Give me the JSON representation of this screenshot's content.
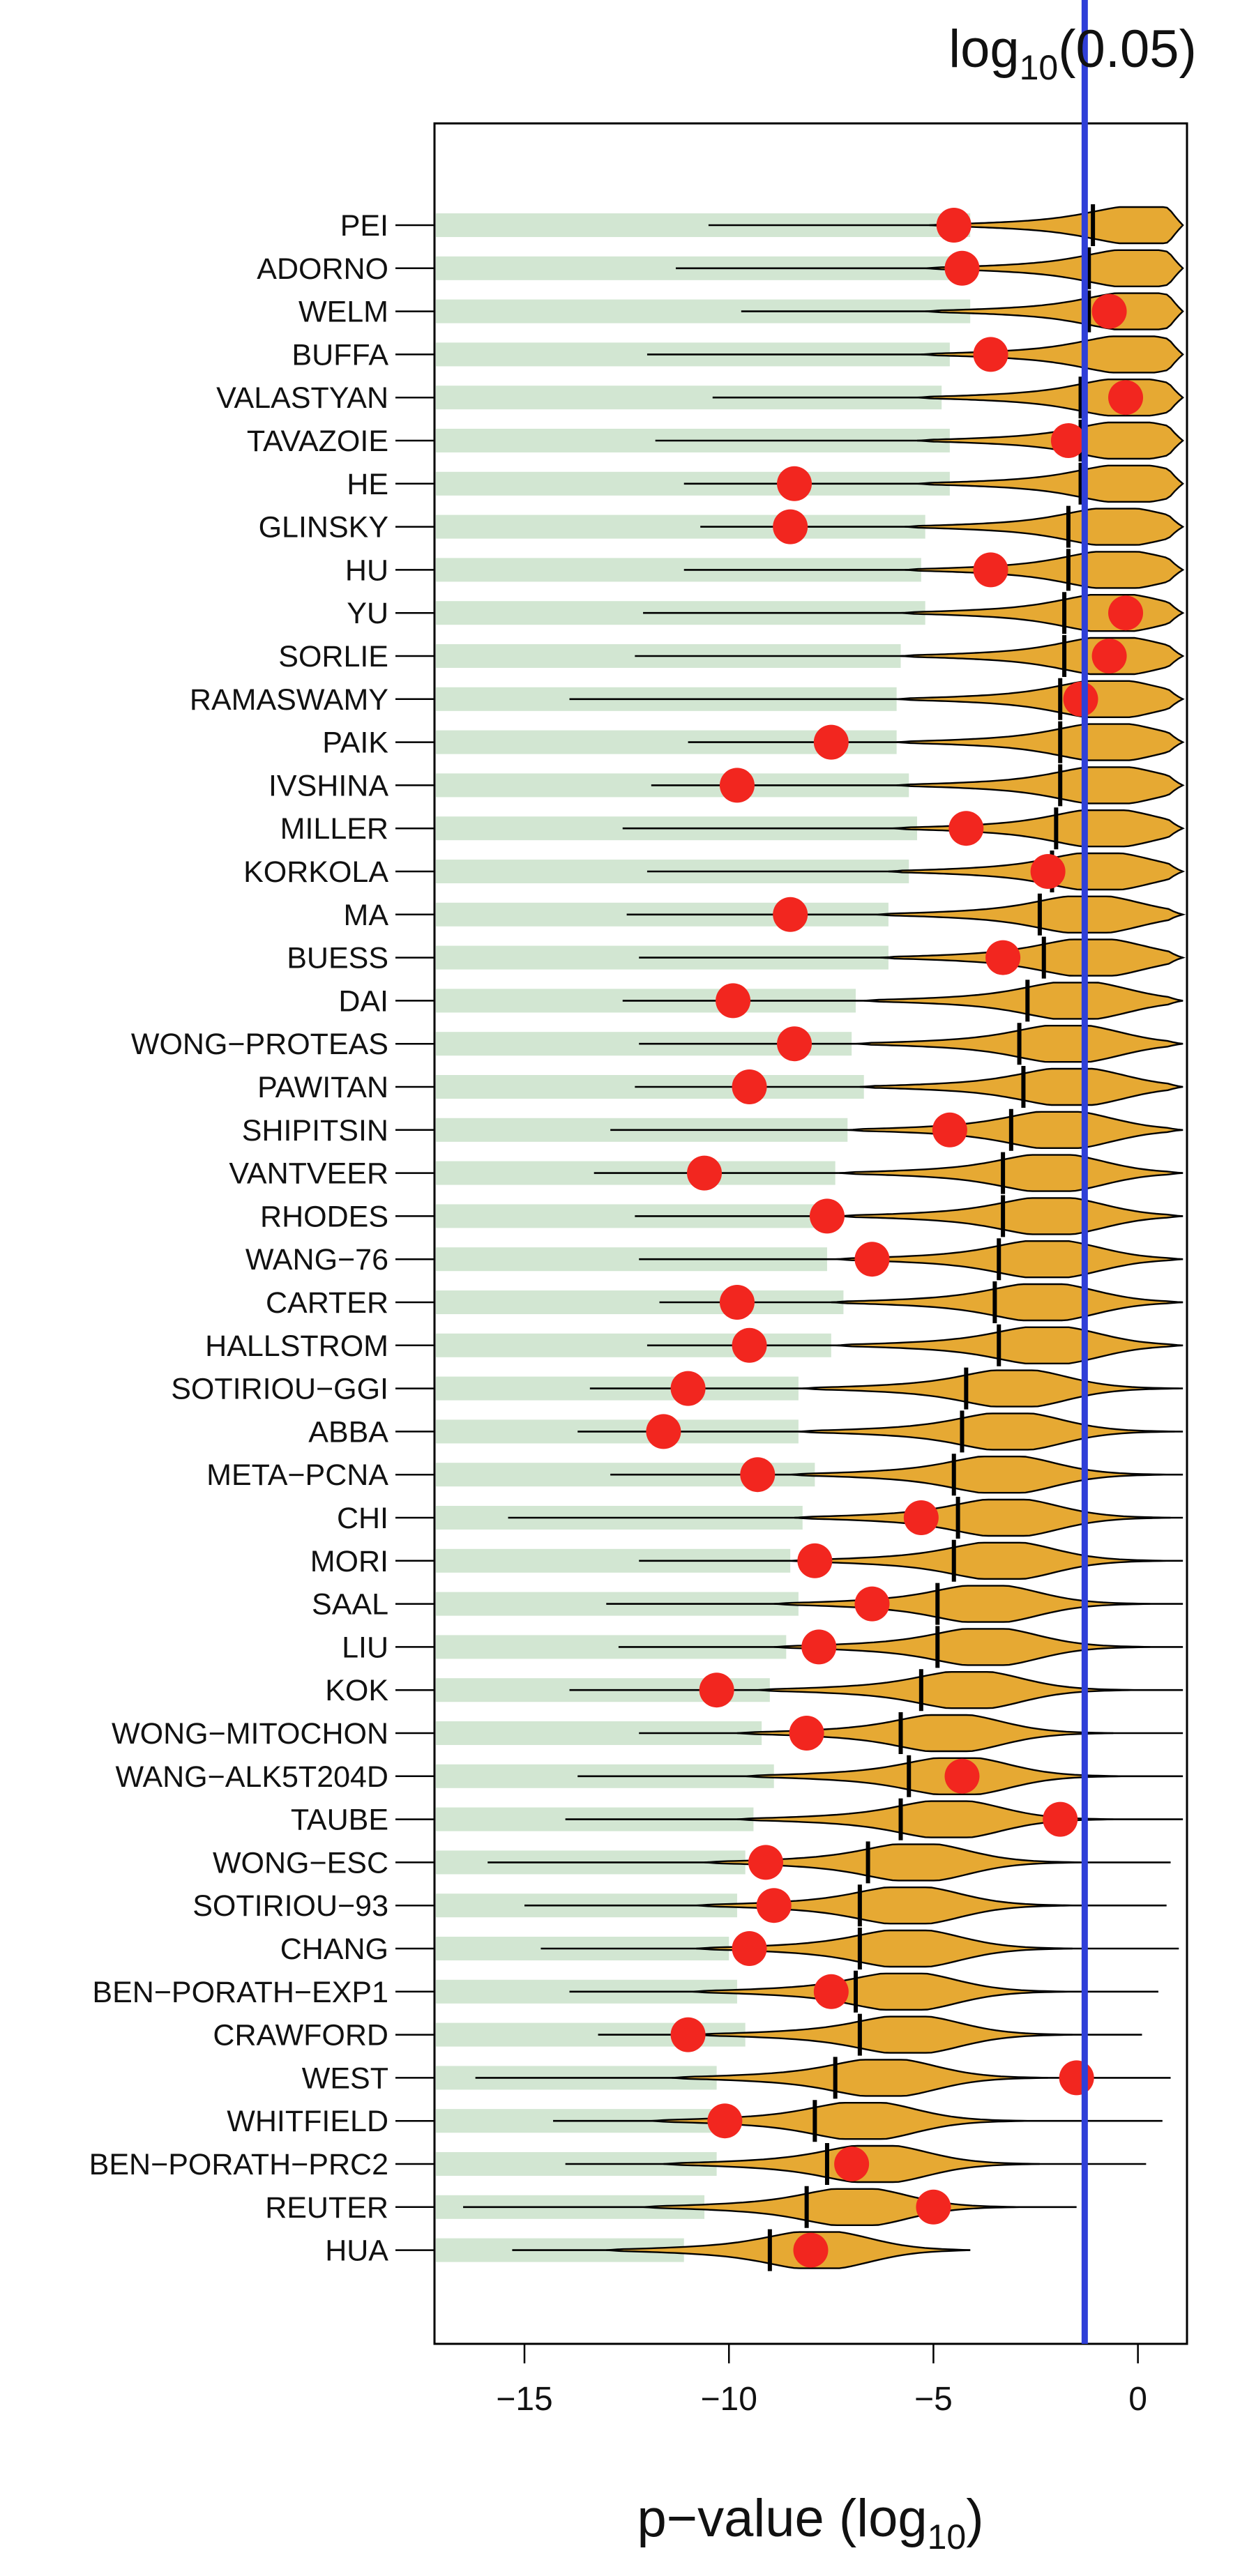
{
  "chart_data": {
    "type": "violin-dot",
    "title": "",
    "xlabel": "p−value (log",
    "xlabel_sub": "10",
    "xlabel_close": ")",
    "xlim": [
      -17.2,
      1.2
    ],
    "x_ticks": [
      -15,
      -10,
      -5,
      0
    ],
    "x_tick_labels": [
      "−15",
      "−10",
      "−5",
      "0"
    ],
    "reference_line": {
      "value": -1.301,
      "label": "log",
      "label_sub": "10",
      "label_arg": "(0.05)",
      "color": "#2f3fd8"
    },
    "colors": {
      "bar": "#d2e6d2",
      "violin": "#e6a933",
      "dot": "#f2261f",
      "whisker": "#000000",
      "frame": "#000000"
    },
    "series_names": [
      "bar_min",
      "whisker_lo",
      "whisker_hi",
      "median",
      "observed"
    ],
    "categories": [
      "PEI",
      "ADORNO",
      "WELM",
      "BUFFA",
      "VALASTYAN",
      "TAVAZOIE",
      "HE",
      "GLINSKY",
      "HU",
      "YU",
      "SORLIE",
      "RAMASWAMY",
      "PAIK",
      "IVSHINA",
      "MILLER",
      "KORKOLA",
      "MA",
      "BUESS",
      "DAI",
      "WONG−PROTEAS",
      "PAWITAN",
      "SHIPITSIN",
      "VANTVEER",
      "RHODES",
      "WANG−76",
      "CARTER",
      "HALLSTROM",
      "SOTIRIOU−GGI",
      "ABBA",
      "META−PCNA",
      "CHI",
      "MORI",
      "SAAL",
      "LIU",
      "KOK",
      "WONG−MITOCHON",
      "WANG−ALK5T204D",
      "TAUBE",
      "WONG−ESC",
      "SOTIRIOU−93",
      "CHANG",
      "BEN−PORATH−EXP1",
      "CRAWFORD",
      "WEST",
      "WHITFIELD",
      "BEN−PORATH−PRC2",
      "REUTER",
      "HUA"
    ],
    "bar_min": [
      -4.1,
      -4.2,
      -4.1,
      -4.6,
      -4.8,
      -4.6,
      -4.6,
      -5.2,
      -5.3,
      -5.2,
      -5.8,
      -5.9,
      -5.9,
      -5.6,
      -5.4,
      -5.6,
      -6.1,
      -6.1,
      -6.9,
      -7.0,
      -6.7,
      -7.1,
      -7.4,
      -7.5,
      -7.6,
      -7.2,
      -7.5,
      -8.3,
      -8.3,
      -7.9,
      -8.2,
      -8.5,
      -8.3,
      -8.6,
      -9.0,
      -9.2,
      -8.9,
      -9.4,
      -9.6,
      -9.8,
      -10.0,
      -9.8,
      -9.6,
      -10.3,
      -10.4,
      -10.3,
      -10.6,
      -11.1
    ],
    "whisker_lo": [
      -10.5,
      -11.3,
      -9.7,
      -12.0,
      -10.4,
      -11.8,
      -11.1,
      -10.7,
      -11.1,
      -12.1,
      -12.3,
      -13.9,
      -11.0,
      -11.9,
      -12.6,
      -12.0,
      -12.5,
      -12.2,
      -12.6,
      -12.2,
      -12.3,
      -12.9,
      -13.3,
      -12.3,
      -12.2,
      -11.7,
      -12.0,
      -13.4,
      -13.7,
      -12.9,
      -15.4,
      -12.2,
      -13.0,
      -12.7,
      -13.9,
      -12.2,
      -13.7,
      -14.0,
      -15.9,
      -15.0,
      -14.6,
      -13.9,
      -13.2,
      -16.2,
      -14.3,
      -14.0,
      -16.5,
      -15.3
    ],
    "whisker_hi": [
      1.1,
      1.1,
      1.1,
      1.1,
      1.1,
      1.1,
      1.1,
      1.1,
      1.1,
      1.1,
      1.1,
      1.1,
      1.1,
      1.1,
      1.1,
      1.1,
      1.1,
      1.1,
      1.1,
      1.1,
      1.1,
      1.1,
      1.1,
      1.1,
      1.1,
      1.1,
      1.1,
      1.1,
      1.1,
      1.1,
      1.1,
      1.1,
      1.1,
      1.1,
      1.1,
      1.1,
      1.1,
      1.1,
      0.8,
      0.7,
      1.0,
      0.5,
      0.1,
      0.8,
      0.6,
      0.2,
      -1.5,
      -4.1
    ],
    "median": [
      -1.1,
      -1.2,
      -1.2,
      -1.3,
      -1.4,
      -1.4,
      -1.4,
      -1.7,
      -1.7,
      -1.8,
      -1.8,
      -1.9,
      -1.9,
      -1.9,
      -2.0,
      -2.1,
      -2.4,
      -2.3,
      -2.7,
      -2.9,
      -2.8,
      -3.1,
      -3.3,
      -3.3,
      -3.4,
      -3.5,
      -3.4,
      -4.2,
      -4.3,
      -4.5,
      -4.4,
      -4.5,
      -4.9,
      -4.9,
      -5.3,
      -5.8,
      -5.6,
      -5.8,
      -6.6,
      -6.8,
      -6.8,
      -6.9,
      -6.8,
      -7.4,
      -7.9,
      -7.6,
      -8.1,
      -9.0
    ],
    "observed": [
      -4.5,
      -4.3,
      -0.7,
      -3.6,
      -0.3,
      -1.7,
      -8.4,
      -8.5,
      -3.6,
      -0.3,
      -0.7,
      -1.4,
      -7.5,
      -9.8,
      -4.2,
      -2.2,
      -8.5,
      -3.3,
      -9.9,
      -8.4,
      -9.5,
      -4.6,
      -10.6,
      -7.6,
      -6.5,
      -9.8,
      -9.5,
      -11.0,
      -11.6,
      -9.3,
      -5.3,
      -7.9,
      -6.5,
      -7.8,
      -10.3,
      -8.1,
      -4.3,
      -1.9,
      -9.1,
      -8.9,
      -9.5,
      -7.5,
      -11.0,
      -1.5,
      -10.1,
      -7.0,
      -5.0,
      -8.0
    ]
  }
}
